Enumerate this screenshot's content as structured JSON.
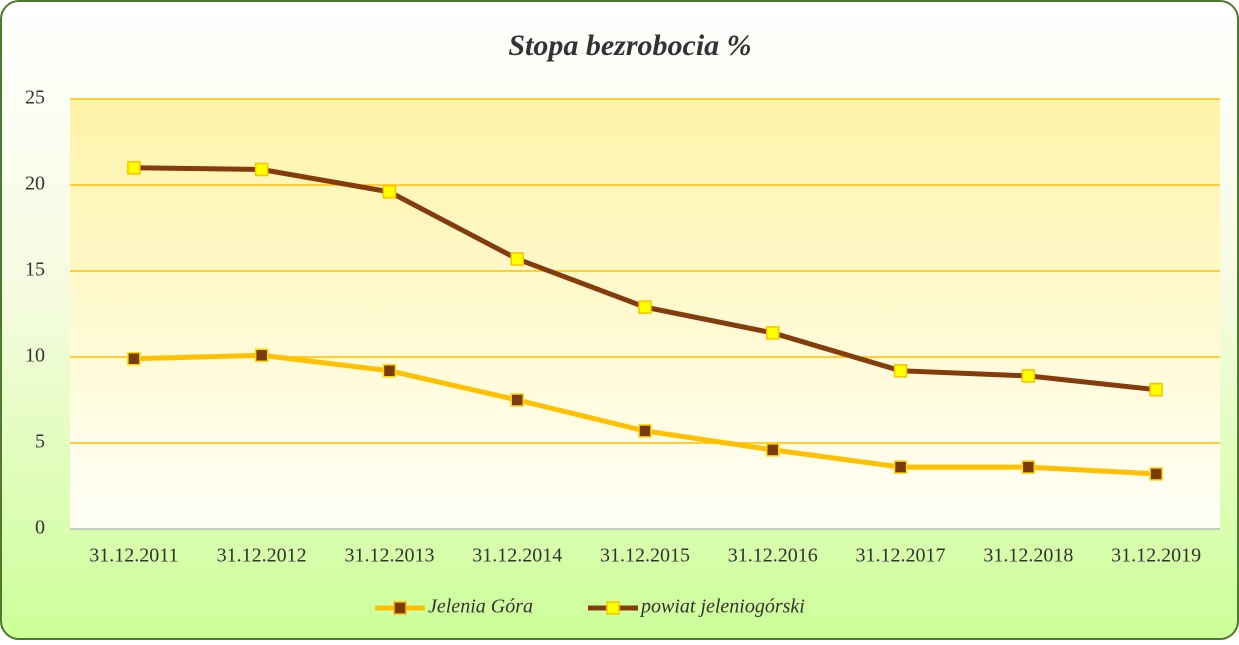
{
  "chart_data": {
    "type": "line",
    "title": "Stopa bezrobocia %",
    "categories": [
      "31.12.2011",
      "31.12.2012",
      "31.12.2013",
      "31.12.2014",
      "31.12.2015",
      "31.12.2016",
      "31.12.2017",
      "31.12.2018",
      "31.12.2019"
    ],
    "series": [
      {
        "name": "Jelenia Góra",
        "color": "#FFC000",
        "marker_color": "#7B3A0A",
        "values": [
          9.9,
          10.1,
          9.2,
          7.5,
          5.7,
          4.6,
          3.6,
          3.6,
          3.2
        ]
      },
      {
        "name": "powiat jeleniogórski",
        "color": "#843C0C",
        "marker_color": "#FFFF00",
        "values": [
          21.0,
          20.9,
          19.6,
          15.7,
          12.9,
          11.4,
          9.2,
          8.9,
          8.1
        ]
      }
    ],
    "ylim": [
      0,
      25
    ],
    "yticks": [
      0,
      5,
      10,
      15,
      20,
      25
    ],
    "grid": true,
    "legend": "bottom"
  }
}
